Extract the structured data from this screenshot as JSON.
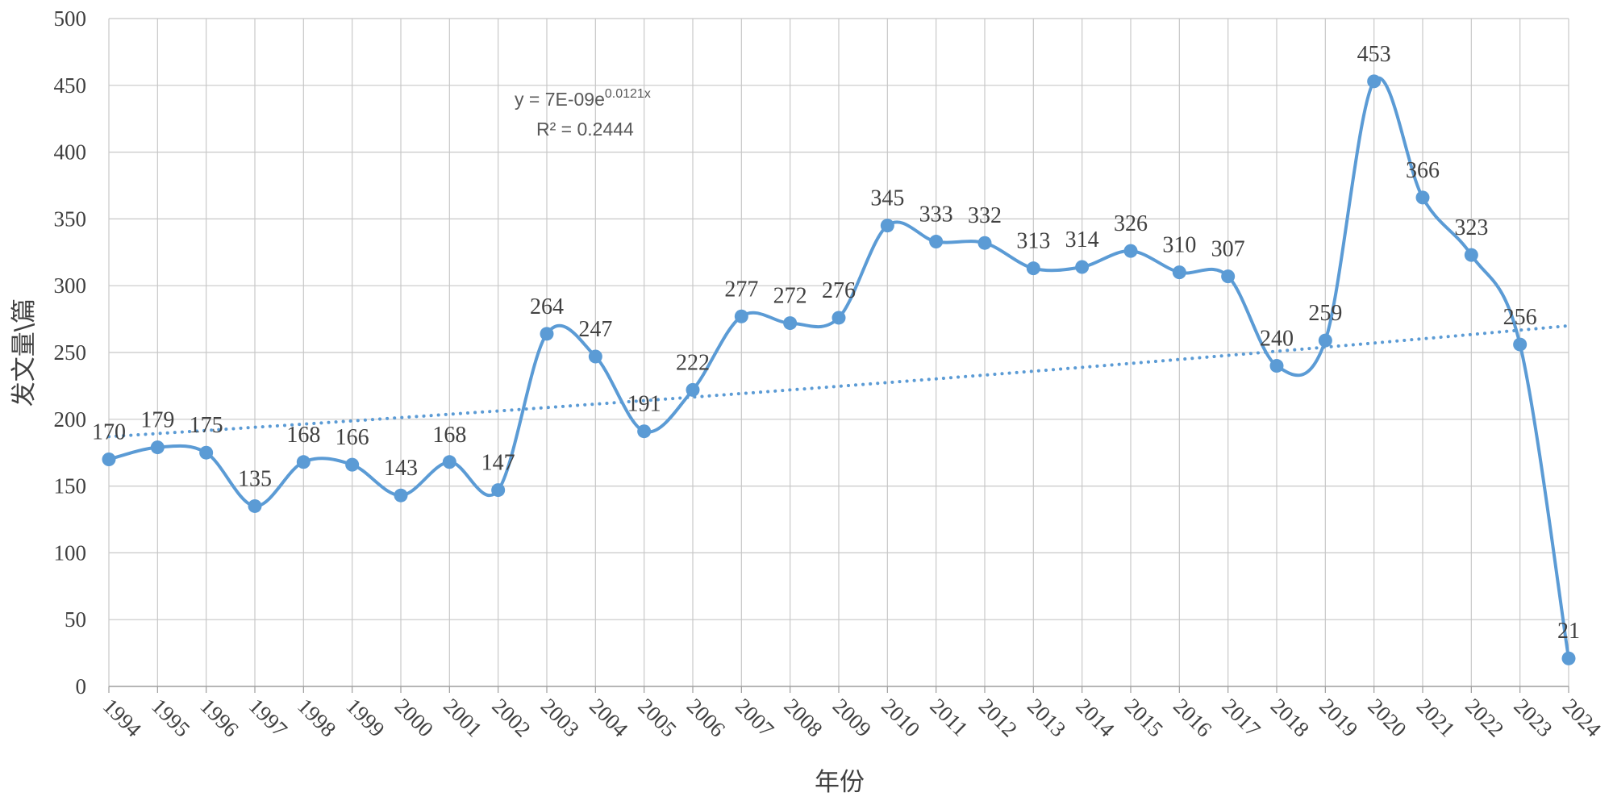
{
  "chart_data": {
    "type": "line",
    "title": "",
    "xlabel": "年份",
    "ylabel": "发文量\\篇",
    "ylim": [
      0,
      500
    ],
    "yticks": [
      0,
      50,
      100,
      150,
      200,
      250,
      300,
      350,
      400,
      450,
      500
    ],
    "grid": true,
    "smooth": true,
    "categories": [
      "1994",
      "1995",
      "1996",
      "1997",
      "1998",
      "1999",
      "2000",
      "2001",
      "2002",
      "2003",
      "2004",
      "2005",
      "2006",
      "2007",
      "2008",
      "2009",
      "2010",
      "2011",
      "2012",
      "2013",
      "2014",
      "2015",
      "2016",
      "2017",
      "2018",
      "2019",
      "2020",
      "2021",
      "2022",
      "2023",
      "2024"
    ],
    "series": [
      {
        "name": "发文量",
        "color": "#5b9bd5",
        "values": [
          170,
          179,
          175,
          135,
          168,
          166,
          143,
          168,
          147,
          264,
          247,
          191,
          222,
          277,
          272,
          276,
          345,
          333,
          332,
          313,
          314,
          326,
          310,
          307,
          240,
          259,
          453,
          366,
          323,
          256,
          21
        ]
      }
    ],
    "trendline": {
      "type": "exponential",
      "start_value": 187,
      "end_value": 270,
      "color": "#5b9bd5",
      "equation_prefix": "y = 7E-09e",
      "equation_exponent": "0.0121x",
      "r_squared": "R² = 0.2444"
    }
  }
}
